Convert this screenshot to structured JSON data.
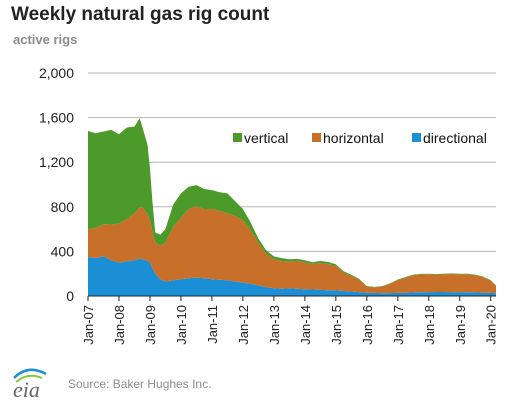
{
  "header": {
    "title": "Weekly natural gas rig count",
    "subtitle": "active rigs"
  },
  "footer": {
    "logo_text": "eia",
    "source": "Source: Baker Hughes Inc."
  },
  "chart_data": {
    "type": "area",
    "stacked": true,
    "title": "Weekly natural gas rig count",
    "ylabel": "active rigs",
    "xlabel": "",
    "ylim": [
      0,
      2000
    ],
    "xlim": [
      "2007-01",
      "2020-01"
    ],
    "grid": true,
    "legend_position": "top-right",
    "yticks": [
      0,
      400,
      800,
      1200,
      1600,
      2000
    ],
    "ytick_labels": [
      "0",
      "400",
      "800",
      "1,200",
      "1,600",
      "2,000"
    ],
    "xtick_labels": [
      "Jan-07",
      "Jan-08",
      "Jan-09",
      "Jan-10",
      "Jan-11",
      "Jan-12",
      "Jan-13",
      "Jan-14",
      "Jan-15",
      "Jan-16",
      "Jan-17",
      "Jan-18",
      "Jan-19",
      "Jan-20"
    ],
    "x": [
      2007.0,
      2007.25,
      2007.5,
      2007.75,
      2008.0,
      2008.25,
      2008.5,
      2008.67,
      2008.75,
      2008.92,
      2009.0,
      2009.08,
      2009.17,
      2009.33,
      2009.5,
      2009.75,
      2010.0,
      2010.25,
      2010.5,
      2010.75,
      2011.0,
      2011.25,
      2011.5,
      2011.75,
      2012.0,
      2012.25,
      2012.5,
      2012.75,
      2013.0,
      2013.25,
      2013.5,
      2013.75,
      2014.0,
      2014.25,
      2014.5,
      2014.75,
      2015.0,
      2015.25,
      2015.5,
      2015.75,
      2016.0,
      2016.25,
      2016.5,
      2016.75,
      2017.0,
      2017.25,
      2017.5,
      2017.75,
      2018.0,
      2018.25,
      2018.5,
      2018.75,
      2019.0,
      2019.25,
      2019.5,
      2019.75,
      2020.0,
      2020.17
    ],
    "series": [
      {
        "name": "directional",
        "color": "#1b8fd6",
        "values": [
          350,
          340,
          355,
          320,
          300,
          310,
          320,
          335,
          330,
          315,
          300,
          250,
          200,
          150,
          130,
          140,
          150,
          160,
          165,
          160,
          150,
          145,
          140,
          130,
          120,
          110,
          95,
          80,
          70,
          65,
          70,
          65,
          60,
          58,
          55,
          52,
          50,
          45,
          40,
          35,
          30,
          28,
          25,
          26,
          28,
          30,
          32,
          33,
          35,
          36,
          36,
          35,
          35,
          34,
          32,
          30,
          28,
          25
        ]
      },
      {
        "name": "horizontal",
        "color": "#c8702a",
        "values": [
          250,
          270,
          290,
          320,
          350,
          380,
          420,
          460,
          470,
          420,
          380,
          330,
          280,
          300,
          350,
          480,
          550,
          620,
          640,
          620,
          630,
          620,
          600,
          590,
          560,
          480,
          380,
          300,
          260,
          250,
          240,
          250,
          240,
          230,
          240,
          235,
          220,
          165,
          140,
          110,
          55,
          50,
          60,
          85,
          115,
          135,
          155,
          160,
          160,
          155,
          160,
          162,
          160,
          160,
          155,
          140,
          110,
          65
        ]
      },
      {
        "name": "vertical",
        "color": "#4b9a2a",
        "values": [
          880,
          850,
          830,
          850,
          800,
          820,
          780,
          800,
          720,
          620,
          460,
          270,
          90,
          100,
          120,
          200,
          220,
          200,
          190,
          180,
          170,
          165,
          180,
          130,
          100,
          70,
          40,
          30,
          25,
          25,
          20,
          18,
          20,
          15,
          20,
          18,
          15,
          12,
          10,
          8,
          5,
          4,
          4,
          4,
          5,
          5,
          5,
          5,
          5,
          5,
          5,
          5,
          5,
          5,
          5,
          5,
          5,
          5
        ]
      }
    ]
  }
}
